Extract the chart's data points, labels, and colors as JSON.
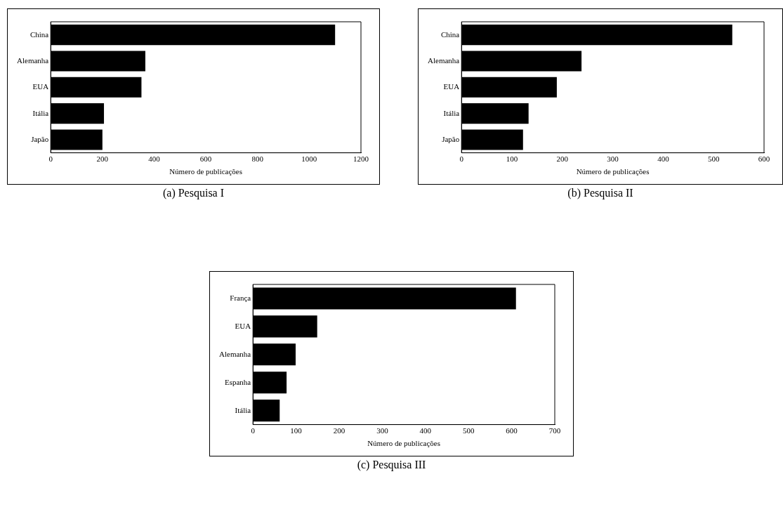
{
  "chart_data": [
    {
      "type": "bar",
      "orientation": "horizontal",
      "title": "(a)   Pesquisa I",
      "xlabel": "Número de publicações",
      "categories": [
        "China",
        "Alemanha",
        "EUA",
        "Itália",
        "Japão"
      ],
      "values": [
        1100,
        366,
        351,
        206,
        200
      ],
      "color": "#000000",
      "xlim": [
        0,
        1200
      ],
      "xticks": [
        0,
        200,
        400,
        600,
        800,
        1000,
        1200
      ],
      "grid": false,
      "legend": false
    },
    {
      "type": "bar",
      "orientation": "horizontal",
      "title": "(b)   Pesquisa II",
      "xlabel": "Número de publicações",
      "categories": [
        "China",
        "Alemanha",
        "EUA",
        "Itália",
        "Japão"
      ],
      "values": [
        537,
        238,
        189,
        133,
        122
      ],
      "color": "#000000",
      "xlim": [
        0,
        600
      ],
      "xticks": [
        0,
        100,
        200,
        300,
        400,
        500,
        600
      ],
      "grid": false,
      "legend": false
    },
    {
      "type": "bar",
      "orientation": "horizontal",
      "title": "(c)   Pesquisa III",
      "xlabel": "Número de publicações",
      "categories": [
        "França",
        "EUA",
        "Alemanha",
        "Espanha",
        "Itália"
      ],
      "values": [
        610,
        149,
        99,
        78,
        62
      ],
      "color": "#000000",
      "xlim": [
        0,
        700
      ],
      "xticks": [
        0,
        100,
        200,
        300,
        400,
        500,
        600,
        700
      ],
      "grid": false,
      "legend": false
    }
  ]
}
